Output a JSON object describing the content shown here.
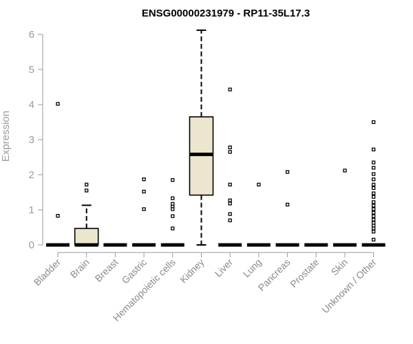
{
  "chart_data": {
    "type": "box",
    "title": "ENSG00000231979 - RP11-35L17.3",
    "ylabel": "Expression",
    "xlabel": "",
    "ylim": [
      0,
      6.2
    ],
    "yticks": [
      0,
      1,
      2,
      3,
      4,
      5,
      6
    ],
    "grid": false,
    "colors": {
      "box_fill": "#ede6cf",
      "axis": "#9a9a9a",
      "box_line": "#000000"
    },
    "categories": [
      "Bladder",
      "Brain",
      "Breast",
      "Gastric",
      "Hematopoietic cells",
      "Kidney",
      "Liver",
      "Lung",
      "Pancreas",
      "Prostate",
      "Skin",
      "Unknown / Other"
    ],
    "boxes": [
      {
        "category": "Bladder",
        "q1": 0,
        "median": 0,
        "q3": 0,
        "whisker_low": 0,
        "whisker_high": 0,
        "outliers": [
          0.83,
          4.02
        ]
      },
      {
        "category": "Brain",
        "q1": 0,
        "median": 0,
        "q3": 0.47,
        "whisker_low": 0,
        "whisker_high": 1.13,
        "outliers": [
          1.55,
          1.72
        ]
      },
      {
        "category": "Breast",
        "q1": 0,
        "median": 0,
        "q3": 0,
        "whisker_low": 0,
        "whisker_high": 0,
        "outliers": []
      },
      {
        "category": "Gastric",
        "q1": 0,
        "median": 0,
        "q3": 0,
        "whisker_low": 0,
        "whisker_high": 0,
        "outliers": [
          1.02,
          1.52,
          1.87
        ]
      },
      {
        "category": "Hematopoietic cells",
        "q1": 0,
        "median": 0,
        "q3": 0,
        "whisker_low": 0,
        "whisker_high": 0,
        "outliers": [
          0.47,
          0.82,
          1.02,
          1.1,
          1.17,
          1.33,
          1.85
        ]
      },
      {
        "category": "Kidney",
        "q1": 1.42,
        "median": 2.58,
        "q3": 3.65,
        "whisker_low": 0,
        "whisker_high": 6.12,
        "outliers": []
      },
      {
        "category": "Liver",
        "q1": 0,
        "median": 0,
        "q3": 0,
        "whisker_low": 0,
        "whisker_high": 0,
        "outliers": [
          0.7,
          0.88,
          1.18,
          1.27,
          1.72,
          2.65,
          2.78,
          4.43
        ]
      },
      {
        "category": "Lung",
        "q1": 0,
        "median": 0,
        "q3": 0,
        "whisker_low": 0,
        "whisker_high": 0,
        "outliers": [
          1.72
        ]
      },
      {
        "category": "Pancreas",
        "q1": 0,
        "median": 0,
        "q3": 0,
        "whisker_low": 0,
        "whisker_high": 0,
        "outliers": [
          1.15,
          2.08
        ]
      },
      {
        "category": "Prostate",
        "q1": 0,
        "median": 0,
        "q3": 0,
        "whisker_low": 0,
        "whisker_high": 0,
        "outliers": []
      },
      {
        "category": "Skin",
        "q1": 0,
        "median": 0,
        "q3": 0,
        "whisker_low": 0,
        "whisker_high": 0,
        "outliers": [
          2.12
        ]
      },
      {
        "category": "Unknown / Other",
        "q1": 0,
        "median": 0,
        "q3": 0,
        "whisker_low": 0,
        "whisker_high": 0,
        "outliers": [
          0.15,
          0.38,
          0.47,
          0.55,
          0.63,
          0.72,
          0.82,
          0.92,
          1.02,
          1.12,
          1.22,
          1.37,
          1.47,
          1.62,
          1.72,
          1.87,
          2.02,
          2.2,
          2.35,
          2.72,
          3.5
        ]
      }
    ]
  }
}
